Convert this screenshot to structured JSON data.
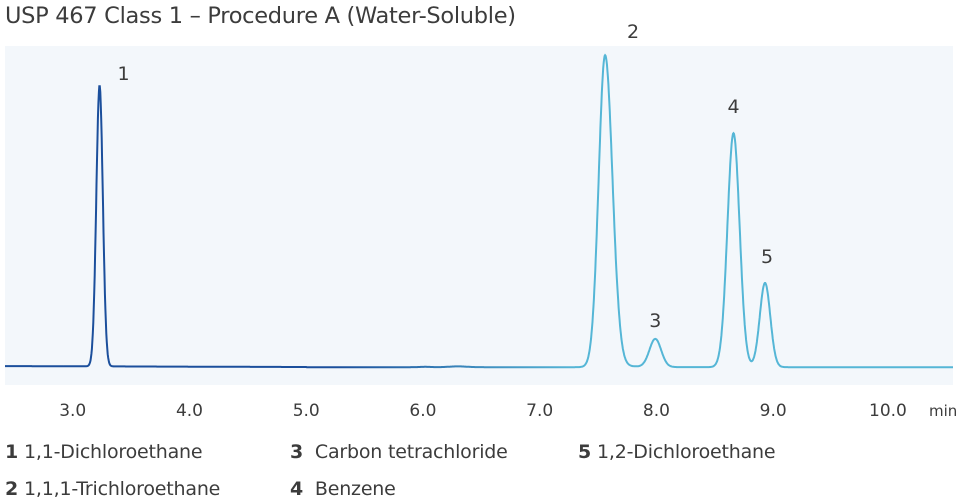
{
  "title": "USP 467 Class 1 – Procedure A (Water-Soluble)",
  "chart_data": {
    "type": "line",
    "title": "USP 467 Class 1 – Procedure A (Water-Soluble)",
    "xlabel": "min",
    "ylabel": "",
    "xlim": [
      2.42,
      10.54
    ],
    "x_ticks": [
      "3.0",
      "4.0",
      "5.0",
      "6.0",
      "7.0",
      "8.0",
      "9.0",
      "10.0"
    ],
    "x_unit": "min",
    "grid": false,
    "background": "#f3f7fb",
    "colors": {
      "early": "#1b4f9c",
      "late": "#55b6d6"
    },
    "peaks": [
      {
        "label": "1",
        "rt": 3.23,
        "height": 90,
        "width": 0.028
      },
      {
        "label": "2",
        "rt": 7.56,
        "height": 100,
        "width": 0.055
      },
      {
        "label": "3",
        "rt": 7.99,
        "height": 9,
        "width": 0.05
      },
      {
        "label": "4",
        "rt": 8.66,
        "height": 75,
        "width": 0.052
      },
      {
        "label": "5",
        "rt": 8.93,
        "height": 27,
        "width": 0.045
      }
    ],
    "legend": [
      {
        "num": "1",
        "name": "1,1-Dichloroethane"
      },
      {
        "num": "2",
        "name": "1,1,1-Trichloroethane"
      },
      {
        "num": "3",
        "name": "Carbon tetrachloride"
      },
      {
        "num": "4",
        "name": "Benzene"
      },
      {
        "num": "5",
        "name": "1,2-Dichloroethane"
      }
    ]
  }
}
